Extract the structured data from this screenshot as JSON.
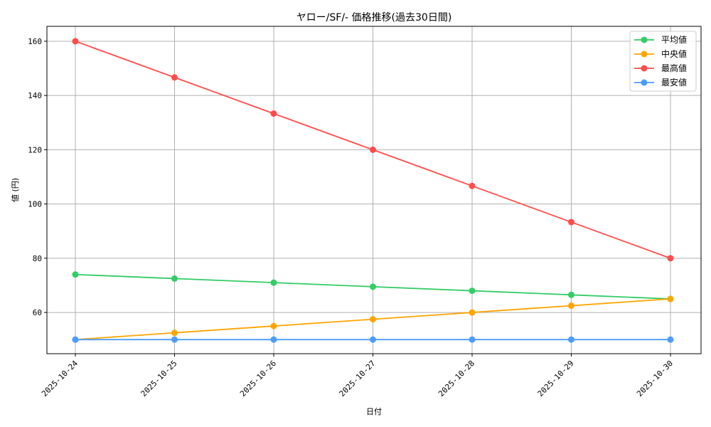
{
  "chart_data": {
    "type": "line",
    "title": "ヤロー/SF/- 価格推移(過去30日間)",
    "xlabel": "日付",
    "ylabel": "値 (円)",
    "categories": [
      "2025-10-24",
      "2025-10-25",
      "2025-10-26",
      "2025-10-27",
      "2025-10-28",
      "2025-10-29",
      "2025-10-30"
    ],
    "series": [
      {
        "name": "平均値",
        "color": "#33cc66",
        "values": [
          74,
          72.5,
          71,
          69.5,
          68,
          66.5,
          65
        ]
      },
      {
        "name": "中央値",
        "color": "#ffa500",
        "values": [
          50,
          52.5,
          55,
          57.5,
          60,
          62.5,
          65
        ]
      },
      {
        "name": "最高値",
        "color": "#ff4c4c",
        "values": [
          160,
          146.67,
          133.33,
          120,
          106.67,
          93.33,
          80
        ]
      },
      {
        "name": "最安値",
        "color": "#4c9cff",
        "values": [
          50,
          50,
          50,
          50,
          50,
          50,
          50
        ]
      }
    ],
    "yticks": [
      60,
      80,
      100,
      120,
      140,
      160
    ],
    "ylim": [
      44.8,
      165.5
    ],
    "grid": true,
    "legend_position": "upper right"
  }
}
